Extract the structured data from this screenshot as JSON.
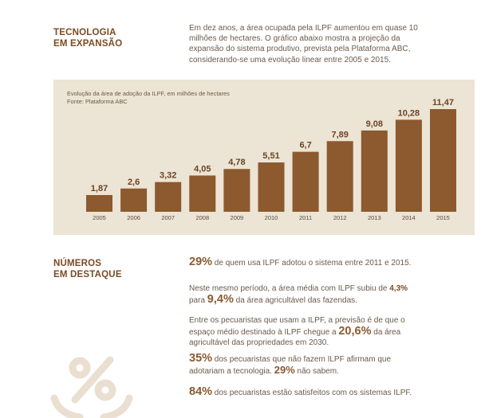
{
  "section1": {
    "title_line1": "TECNOLOGIA",
    "title_line2": "EM EXPANSÃO"
  },
  "intro_text": "Em dez anos, a área ocupada pela ILPF aumentou em quase 10 milhões de hectares. O gráfico abaixo mostra a projeção da expansão do sistema produtivo, prevista pela Plataforma ABC, considerando-se uma evolução linear entre 2005 e 2015.",
  "chart_caption": {
    "line1": "Evolução da área de adoção da ILPF, em milhões de hectares",
    "line2": "Fonte: Plataforma ABC"
  },
  "chart_data": {
    "type": "bar",
    "categories": [
      "2005",
      "2006",
      "2007",
      "2008",
      "2009",
      "2010",
      "2011",
      "2012",
      "2013",
      "2014",
      "2015"
    ],
    "values": [
      1.87,
      2.6,
      3.32,
      4.05,
      4.78,
      5.51,
      6.7,
      7.89,
      9.08,
      10.28,
      11.47
    ],
    "value_labels": [
      "1,87",
      "2,6",
      "3,32",
      "4,05",
      "4,78",
      "5,51",
      "6,7",
      "7,89",
      "9,08",
      "10,28",
      "11,47"
    ],
    "title": "Evolução da área de adoção da ILPF, em milhões de hectares",
    "xlabel": "",
    "ylabel": "",
    "ylim": [
      0,
      11.47
    ],
    "grid": false,
    "bar_color": "#8c5a2e",
    "background": "#ece4d4"
  },
  "section2": {
    "title_line1": "NÚMEROS",
    "title_line2": "EM DESTAQUE"
  },
  "stats": {
    "s1": {
      "big": "29%",
      "text": " de quem usa ILPF adotou o sistema entre 2011 e 2015."
    },
    "s2": {
      "pre": "Neste mesmo período, a área média com ILPF subiu de ",
      "mid": "4,3%",
      "line2_pre": "para ",
      "big": "9,4%",
      "post": " da área agricultável das fazendas."
    },
    "s3": {
      "pre": "Entre os pecuaristas que usam a ILPF, a previsão é de que o espaço médio destinado à ILPF chegue a ",
      "big": "20,6%",
      "post": " da área agricultável das propriedades em 2030."
    },
    "s4": {
      "big": "35%",
      "text": " dos pecuaristas que não fazem ILPF afirmam que adotariam a tecnologia. ",
      "big2": "29%",
      "post": " não sabem."
    },
    "s5": {
      "big": "84%",
      "text": " dos pecuaristas estão satisfeitos com os sistemas ILPF."
    }
  },
  "decoration": {
    "icon": "percent-hand-icon",
    "color": "#eadfd0"
  }
}
